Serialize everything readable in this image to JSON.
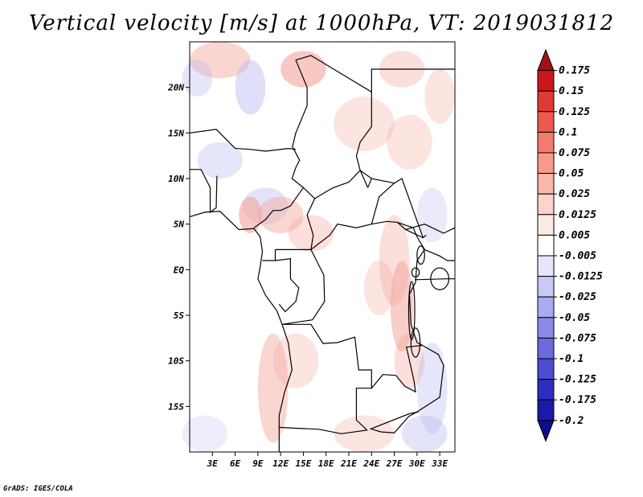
{
  "title": "Vertical velocity [m/s] at 1000hPa, VT: 2019031812",
  "footer": "GrADS: IGES/COLA",
  "map": {
    "lon_range": [
      0,
      35
    ],
    "lat_range": [
      -20,
      25
    ],
    "lon_ticks": [
      "3E",
      "6E",
      "9E",
      "12E",
      "15E",
      "18E",
      "21E",
      "24E",
      "27E",
      "30E",
      "33E"
    ],
    "lat_ticks": [
      "20N",
      "15N",
      "10N",
      "5N",
      "EQ",
      "5S",
      "10S",
      "15S"
    ]
  },
  "colorbar": {
    "levels": [
      "0.175",
      "0.15",
      "0.125",
      "0.1",
      "0.075",
      "0.05",
      "0.025",
      "0.0125",
      "0.005",
      "-0.005",
      "-0.0125",
      "-0.025",
      "-0.05",
      "-0.075",
      "-0.1",
      "-0.125",
      "-0.175",
      "-0.2"
    ],
    "colors": [
      "#a50f15",
      "#cb181d",
      "#e03a34",
      "#ef5a4f",
      "#f37b6e",
      "#f79a8c",
      "#fab8ab",
      "#fcd3c9",
      "#fde9e3",
      "#ffffff",
      "#e6e6fb",
      "#c9c9f6",
      "#aaaaf1",
      "#8a8ae8",
      "#6b6bde",
      "#4d4dd0",
      "#2d2dbf",
      "#1a1aa8",
      "#0d0d8c"
    ]
  },
  "palette": {
    "frame": "#000000",
    "ocean": "#ffffff",
    "red": "#f4a49a",
    "blue": "#b8b8f2",
    "border": "#000000"
  }
}
